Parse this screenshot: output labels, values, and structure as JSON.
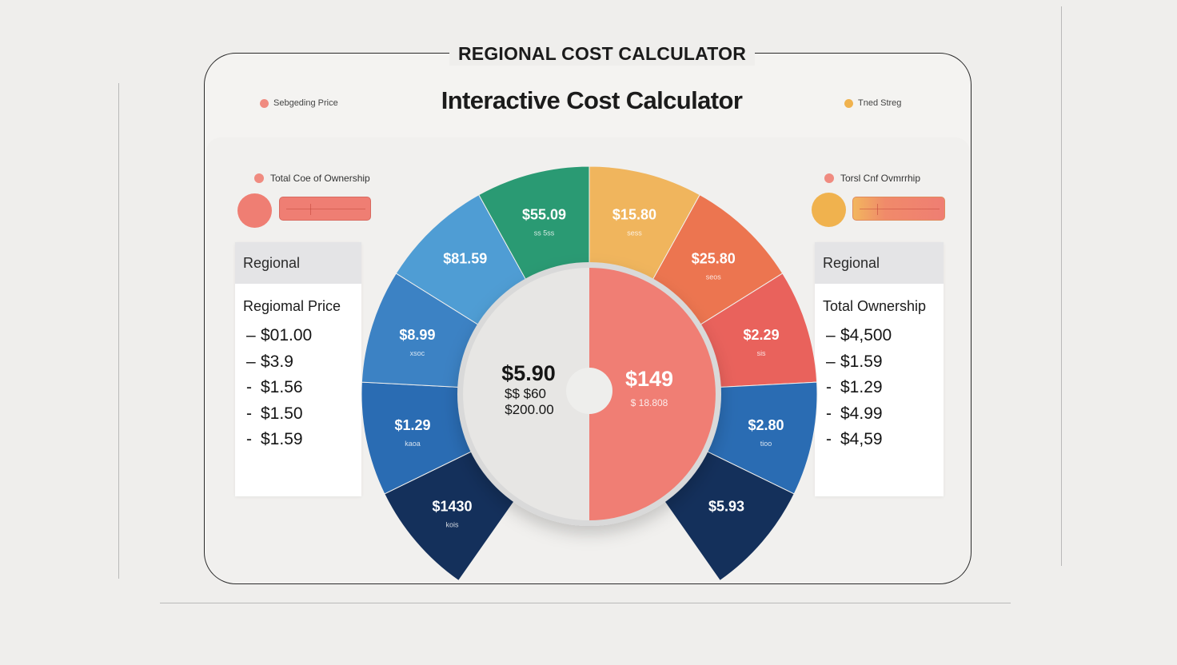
{
  "header": {
    "frame_title": "REGIONAL COST CALCULATOR",
    "subtitle": "Interactive Cost Calculator",
    "left_mini_label": "Sebgeding Price",
    "right_mini_label": "Tned Streg"
  },
  "left_panel": {
    "control_label": "Total Coe of Ownership",
    "slider_value": 0.3,
    "card_header": "Regional",
    "card_title": "Regiomal Price",
    "items": [
      "$01.00",
      "$3.9",
      "$1.56",
      "$1.50",
      "$1.59"
    ]
  },
  "right_panel": {
    "control_label": "Torsl Cnf Ovmrrhip",
    "slider_value": 0.22,
    "card_header": "Regional",
    "card_title": "Total Ownership",
    "items": [
      "$4,500",
      "$1.59",
      "$1.29",
      "$4.99",
      "$4,59"
    ]
  },
  "center": {
    "left_main": "$5.90",
    "left_line2": "$$ $60",
    "left_line3": "$200.00",
    "right_main": "$149",
    "right_sub": "$ 18.808"
  },
  "colors": {
    "salmon": "#ef7e73",
    "orange_dot": "#f0b24e",
    "dark_navy": "#14305b",
    "blue": "#2a6cb3",
    "light_blue": "#4a95cf",
    "green": "#2a9a73",
    "gold": "#f0b55d",
    "orange": "#ec7550",
    "red": "#e9625c",
    "center_left": "#e7e6e4",
    "center_right": "#f07e74"
  },
  "gauge": {
    "segments": [
      {
        "label": "$1430",
        "sub": "kois",
        "color": "#14305b"
      },
      {
        "label": "$1.29",
        "sub": "kaoa",
        "color": "#2a6cb3"
      },
      {
        "label": "$8.99",
        "sub": "xsoc",
        "color": "#3c82c4"
      },
      {
        "label": "$81.59",
        "sub": "",
        "color": "#4f9dd4"
      },
      {
        "label": "$55.09",
        "sub": "ss 5ss",
        "color": "#2a9a73"
      },
      {
        "label": "$15.80",
        "sub": "sess",
        "color": "#f0b55d"
      },
      {
        "label": "$25.80",
        "sub": "seos",
        "color": "#ec7550"
      },
      {
        "label": "$2.29",
        "sub": "sis",
        "color": "#e9625c"
      },
      {
        "label": "$2.80",
        "sub": "tioo",
        "color": "#2a6cb3"
      },
      {
        "label": "$5.93",
        "sub": "",
        "color": "#14305b"
      }
    ]
  }
}
